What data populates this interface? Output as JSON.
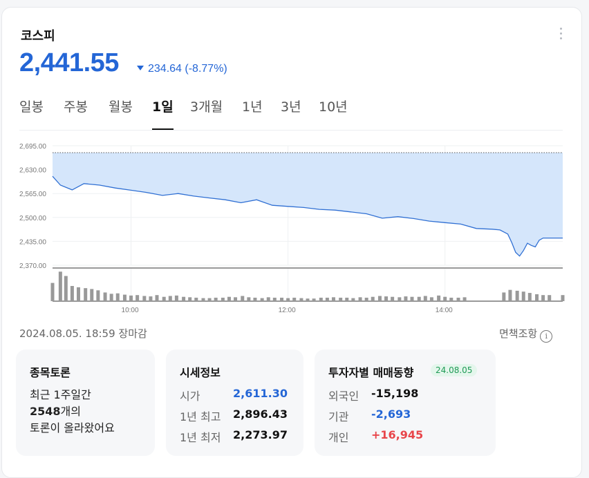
{
  "title": "코스피",
  "price": "2,441.55",
  "change": {
    "amount": "234.64",
    "percent": "(-8.77%)",
    "direction": "down"
  },
  "tabs": [
    "일봉",
    "주봉",
    "월봉",
    "1일",
    "3개월",
    "1년",
    "3년",
    "10년"
  ],
  "active_tab": "1일",
  "chart_data": {
    "type": "area",
    "y_ticks": [
      "2,695.00",
      "2,630.00",
      "2,565.00",
      "2,500.00",
      "2,435.00",
      "2,370.00"
    ],
    "x_ticks": [
      "10:00",
      "12:00",
      "14:00"
    ],
    "prev_close": 2676.19,
    "ylim": [
      2370,
      2695
    ],
    "series": [
      {
        "values": [
          [
            9.0,
            2612
          ],
          [
            9.1,
            2588
          ],
          [
            9.25,
            2575
          ],
          [
            9.4,
            2592
          ],
          [
            9.6,
            2588
          ],
          [
            9.8,
            2580
          ],
          [
            10.0,
            2574
          ],
          [
            10.2,
            2568
          ],
          [
            10.4,
            2560
          ],
          [
            10.6,
            2565
          ],
          [
            10.8,
            2558
          ],
          [
            11.0,
            2553
          ],
          [
            11.2,
            2548
          ],
          [
            11.4,
            2540
          ],
          [
            11.6,
            2548
          ],
          [
            11.8,
            2533
          ],
          [
            12.0,
            2530
          ],
          [
            12.2,
            2527
          ],
          [
            12.4,
            2522
          ],
          [
            12.6,
            2520
          ],
          [
            12.8,
            2515
          ],
          [
            13.0,
            2510
          ],
          [
            13.2,
            2498
          ],
          [
            13.4,
            2502
          ],
          [
            13.6,
            2497
          ],
          [
            13.8,
            2490
          ],
          [
            14.0,
            2486
          ],
          [
            14.2,
            2482
          ],
          [
            14.4,
            2470
          ],
          [
            14.6,
            2468
          ],
          [
            14.7,
            2466
          ],
          [
            14.8,
            2455
          ],
          [
            14.85,
            2432
          ],
          [
            14.9,
            2405
          ],
          [
            14.95,
            2395
          ],
          [
            15.0,
            2410
          ],
          [
            15.05,
            2430
          ],
          [
            15.1,
            2424
          ],
          [
            15.15,
            2420
          ],
          [
            15.2,
            2438
          ],
          [
            15.25,
            2444
          ],
          [
            15.5,
            2444
          ]
        ]
      }
    ],
    "volume": [
      [
        9.0,
        42
      ],
      [
        9.1,
        68
      ],
      [
        9.17,
        58
      ],
      [
        9.25,
        35
      ],
      [
        9.33,
        32
      ],
      [
        9.42,
        30
      ],
      [
        9.5,
        28
      ],
      [
        9.58,
        25
      ],
      [
        9.67,
        20
      ],
      [
        9.75,
        17
      ],
      [
        9.83,
        18
      ],
      [
        9.92,
        15
      ],
      [
        10.0,
        13
      ],
      [
        10.08,
        14
      ],
      [
        10.17,
        12
      ],
      [
        10.25,
        11
      ],
      [
        10.33,
        14
      ],
      [
        10.42,
        10
      ],
      [
        10.5,
        12
      ],
      [
        10.58,
        13
      ],
      [
        10.67,
        10
      ],
      [
        10.75,
        9
      ],
      [
        10.83,
        8
      ],
      [
        10.92,
        7
      ],
      [
        11.0,
        7
      ],
      [
        11.08,
        8
      ],
      [
        11.17,
        8
      ],
      [
        11.25,
        10
      ],
      [
        11.33,
        9
      ],
      [
        11.42,
        12
      ],
      [
        11.5,
        9
      ],
      [
        11.58,
        8
      ],
      [
        11.67,
        7
      ],
      [
        11.75,
        9
      ],
      [
        11.83,
        8
      ],
      [
        11.92,
        8
      ],
      [
        12.0,
        7
      ],
      [
        12.08,
        8
      ],
      [
        12.17,
        7
      ],
      [
        12.25,
        6
      ],
      [
        12.33,
        6
      ],
      [
        12.42,
        8
      ],
      [
        12.5,
        8
      ],
      [
        12.58,
        9
      ],
      [
        12.67,
        8
      ],
      [
        12.75,
        8
      ],
      [
        12.83,
        7
      ],
      [
        12.92,
        9
      ],
      [
        13.0,
        8
      ],
      [
        13.08,
        10
      ],
      [
        13.17,
        12
      ],
      [
        13.25,
        11
      ],
      [
        13.33,
        10
      ],
      [
        13.42,
        9
      ],
      [
        13.5,
        11
      ],
      [
        13.58,
        10
      ],
      [
        13.67,
        10
      ],
      [
        13.75,
        12
      ],
      [
        13.83,
        9
      ],
      [
        13.92,
        13
      ],
      [
        14.0,
        10
      ],
      [
        14.08,
        8
      ],
      [
        14.17,
        8
      ],
      [
        14.25,
        9
      ],
      [
        14.75,
        20
      ],
      [
        14.83,
        26
      ],
      [
        14.92,
        24
      ],
      [
        15.0,
        22
      ],
      [
        15.08,
        19
      ],
      [
        15.17,
        16
      ],
      [
        15.25,
        14
      ],
      [
        15.33,
        14
      ],
      [
        15.5,
        14
      ]
    ]
  },
  "timestamp": "2024.08.05. 18:59 장마감",
  "disclaimer": "면책조항",
  "discussion": {
    "title": "종목토론",
    "line1": "최근 1주일간",
    "count": "2548",
    "line2_suffix": "개의",
    "line3": "토론이 올라왔어요"
  },
  "market_info": {
    "title": "시세정보",
    "rows": [
      {
        "label": "시가",
        "value": "2,611.30",
        "color": "#2466d6"
      },
      {
        "label": "1년 최고",
        "value": "2,896.43",
        "color": "#111111"
      },
      {
        "label": "1년 최저",
        "value": "2,273.97",
        "color": "#111111"
      }
    ]
  },
  "investors": {
    "title": "투자자별 매매동향",
    "date": "24.08.05",
    "rows": [
      {
        "label": "외국인",
        "value": "-15,198",
        "color": "#111111"
      },
      {
        "label": "기관",
        "value": "-2,693",
        "color": "#2466d6"
      },
      {
        "label": "개인",
        "value": "+16,945",
        "color": "#e8454a"
      }
    ]
  }
}
